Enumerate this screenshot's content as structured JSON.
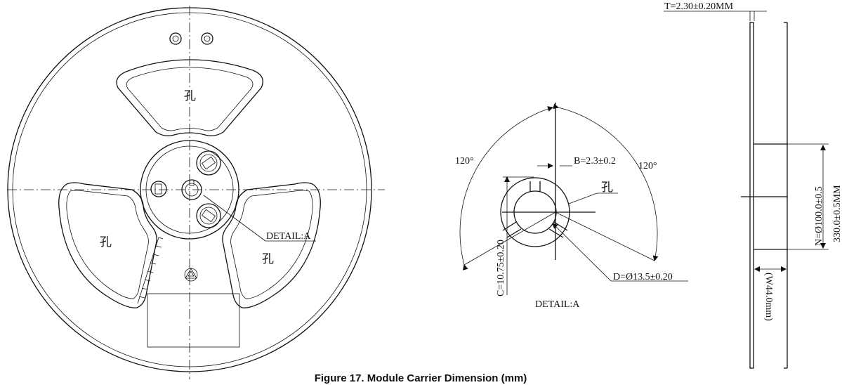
{
  "front_view": {
    "hole_labels": [
      "孔",
      "孔",
      "孔"
    ],
    "detail_callout": "DETAIL:A"
  },
  "detail_view": {
    "angle_left": "120°",
    "angle_right": "120°",
    "dim_b": "B=2.3±0.2",
    "dim_c": "C=10.75±0.20",
    "dim_d": "D=Ø13.5±0.20",
    "hole_label": "孔",
    "title": "DETAIL:A"
  },
  "side_view": {
    "dim_t": "T=2.30±0.20MM",
    "dim_n": "N=Ø100.0±0.5",
    "dim_outer": "330.0±0.5MM",
    "dim_w": "(W44.0mm)"
  },
  "caption": "Figure 17. Module Carrier Dimension (mm)"
}
